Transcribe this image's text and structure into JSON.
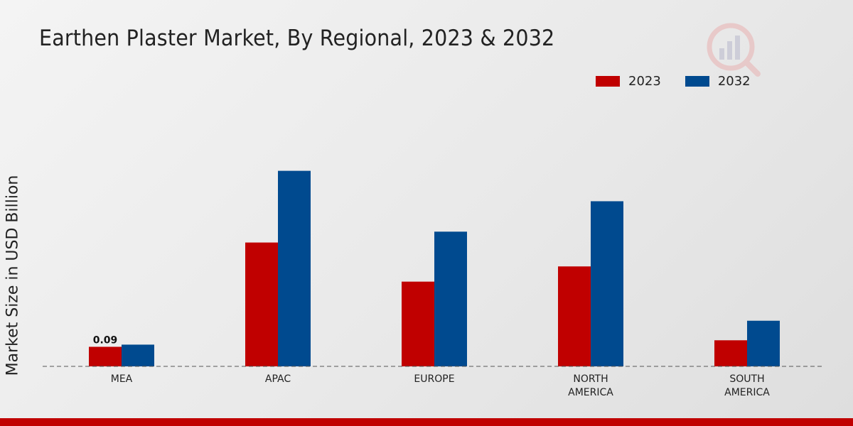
{
  "chart_data": {
    "type": "bar",
    "title": "Earthen Plaster Market, By Regional, 2023 & 2032",
    "xlabel": "",
    "ylabel": "Market Size in USD Billion",
    "categories": [
      [
        "MEA"
      ],
      [
        "APAC"
      ],
      [
        "EUROPE"
      ],
      [
        "NORTH",
        "AMERICA"
      ],
      [
        "SOUTH",
        "AMERICA"
      ]
    ],
    "series": [
      {
        "name": "2023",
        "color": "#c00000",
        "values": [
          0.09,
          0.57,
          0.39,
          0.46,
          0.12
        ]
      },
      {
        "name": "2032",
        "color": "#004a8f",
        "values": [
          0.1,
          0.9,
          0.62,
          0.76,
          0.21
        ]
      }
    ],
    "data_labels": [
      {
        "series": 0,
        "index": 0,
        "text": "0.09"
      }
    ],
    "ylim": [
      0,
      1.0
    ],
    "grid": false,
    "legend_position": "top-right"
  },
  "colors": {
    "accent": "#c00000",
    "secondary": "#004a8f",
    "bottom_bar": "#c00000"
  },
  "logo_icon": "analytics-chart-icon"
}
